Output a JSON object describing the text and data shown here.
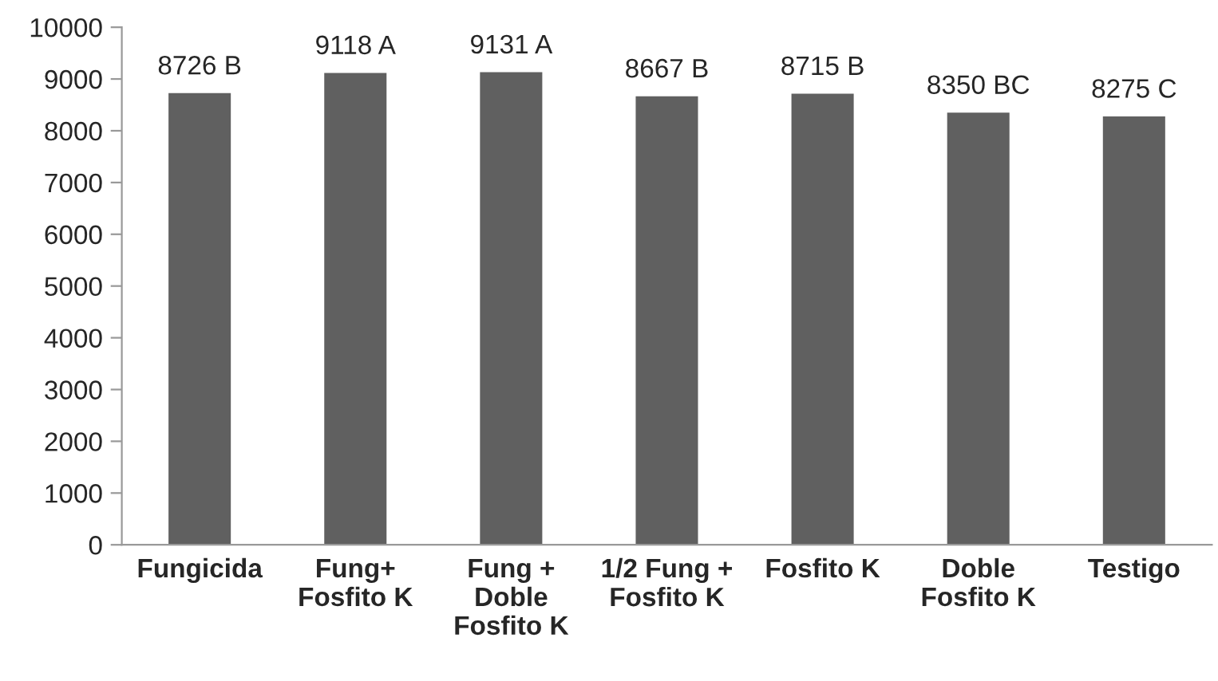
{
  "chart_data": {
    "type": "bar",
    "categories": [
      "Fungicida",
      "Fung+\nFosfito K",
      "Fung +\nDoble\nFosfito K",
      "1/2 Fung +\nFosfito K",
      "Fosfito K",
      "Doble\nFosfito K",
      "Testigo"
    ],
    "values": [
      8726,
      9118,
      9131,
      8667,
      8715,
      8350,
      8275
    ],
    "value_labels": [
      "8726 B",
      "9118 A",
      "9131 A",
      "8667 B",
      "8715 B",
      "8350 BC",
      "8275 C"
    ],
    "color": "#606060",
    "ylim": [
      0,
      10000
    ],
    "yticks": [
      0,
      1000,
      2000,
      3000,
      4000,
      5000,
      6000,
      7000,
      8000,
      9000,
      10000
    ],
    "grid": false,
    "legend": false
  }
}
